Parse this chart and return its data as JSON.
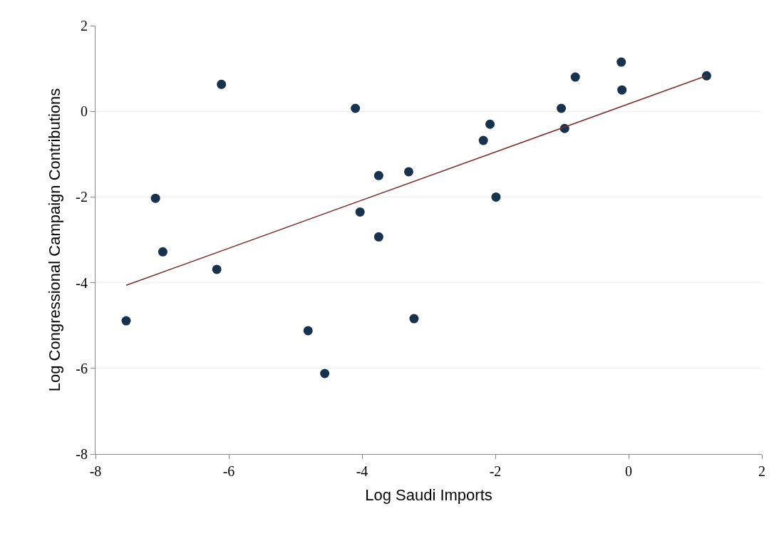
{
  "chart_data": {
    "type": "scatter",
    "xlabel": "Log Saudi Imports",
    "ylabel": "Log Congressional Campaign Contributions",
    "xlim": [
      -8,
      2
    ],
    "xticks": [
      -8,
      -6,
      -4,
      -2,
      0,
      2
    ],
    "ylim": [
      -8,
      2
    ],
    "yticks": [
      2,
      0,
      -2,
      -4,
      -6,
      -8
    ],
    "grid": "y",
    "series": [
      {
        "marker": "circle",
        "color": "#17324f",
        "x": [
          -7.54,
          -7.1,
          -6.99,
          -6.11,
          -6.18,
          -4.81,
          -4.56,
          -4.1,
          -4.03,
          -3.75,
          -3.75,
          -3.3,
          -3.22,
          -2.18,
          -2.08,
          -1.99,
          -1.01,
          -0.96,
          -0.8,
          -0.11,
          -0.1,
          1.17
        ],
        "values": [
          -4.89,
          -2.03,
          -3.28,
          0.63,
          -3.69,
          -5.12,
          -6.12,
          0.07,
          -2.35,
          -1.5,
          -2.93,
          -1.41,
          -4.84,
          -0.68,
          -0.3,
          -2.0,
          0.07,
          -0.4,
          0.8,
          1.15,
          0.5,
          0.83
        ]
      },
      {
        "type": "line",
        "marker": "none",
        "color": "#7b2c2c",
        "x": [
          -7.54,
          1.17
        ],
        "values": [
          -4.06,
          0.83
        ]
      }
    ]
  }
}
